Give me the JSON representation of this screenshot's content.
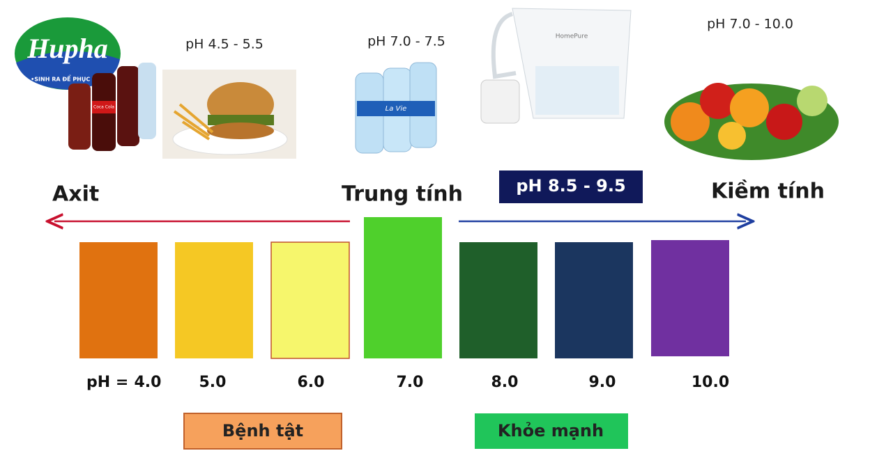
{
  "logo": {
    "name": "Hupha",
    "tagline": "•SINH RA ĐỂ PHỤC VỤ•"
  },
  "foods": [
    {
      "range": "pH 4.5 - 5.5",
      "product_label": "Coca Cola"
    },
    {
      "range": "pH 7.0 - 7.5",
      "product_label": "La Vie"
    },
    {
      "range": "pH 8.5 - 9.5",
      "product_label": "HomePure"
    },
    {
      "range": "pH 7.0 - 10.0"
    }
  ],
  "headings": {
    "acid": "Axit",
    "neutral": "Trung tính",
    "alkaline": "Kiềm tính"
  },
  "scale": {
    "prefix": "pH =",
    "swatches": [
      {
        "label": "4.0",
        "color": "#e07210"
      },
      {
        "label": "5.0",
        "color": "#f5c824"
      },
      {
        "label": "6.0",
        "color": "#f6f66c"
      },
      {
        "label": "7.0",
        "color": "#4fd02c"
      },
      {
        "label": "8.0",
        "color": "#1f5f2a"
      },
      {
        "label": "9.0",
        "color": "#1b365f"
      },
      {
        "label": "10.0",
        "color": "#7030a0"
      }
    ]
  },
  "zones": {
    "sick": "Bệnh tật",
    "healthy": "Khỏe mạnh"
  }
}
